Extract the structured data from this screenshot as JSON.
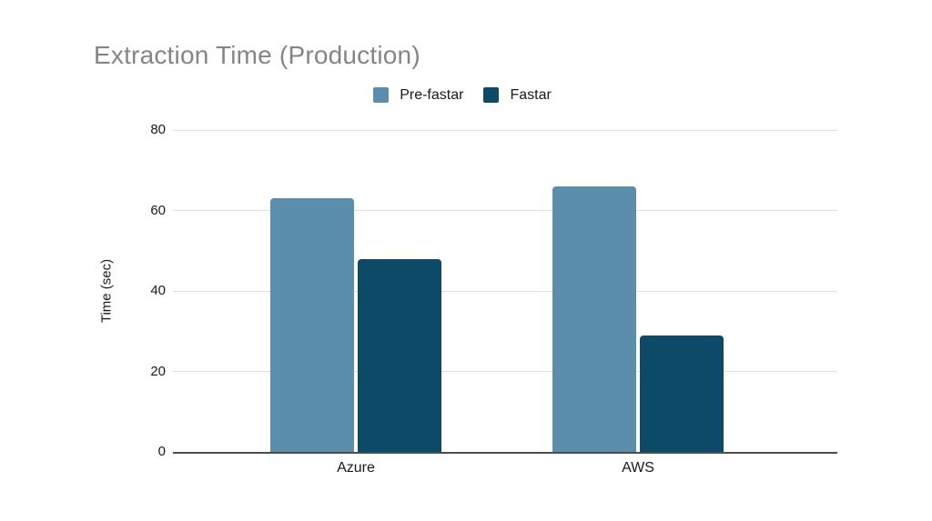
{
  "chart_data": {
    "type": "bar",
    "title": "Extraction Time (Production)",
    "categories": [
      "Azure",
      "AWS"
    ],
    "series": [
      {
        "name": "Pre-fastar",
        "color": "#5b8dad",
        "values": [
          63,
          66
        ]
      },
      {
        "name": "Fastar",
        "color": "#0d4a68",
        "values": [
          48,
          29
        ]
      }
    ],
    "xlabel": "",
    "ylabel": "Time (sec)",
    "ylim": [
      0,
      80
    ],
    "yticks": [
      0,
      20,
      40,
      60,
      80
    ],
    "grid": true,
    "legend_position": "top",
    "colors": {
      "background": "#ffffff",
      "title_text": "#858585",
      "gridline": "#e0e0e0",
      "axis_line": "#4d4d4d",
      "tick_label_text": "#1a1a1a",
      "legend_label_text": "#1a1a1a"
    }
  }
}
